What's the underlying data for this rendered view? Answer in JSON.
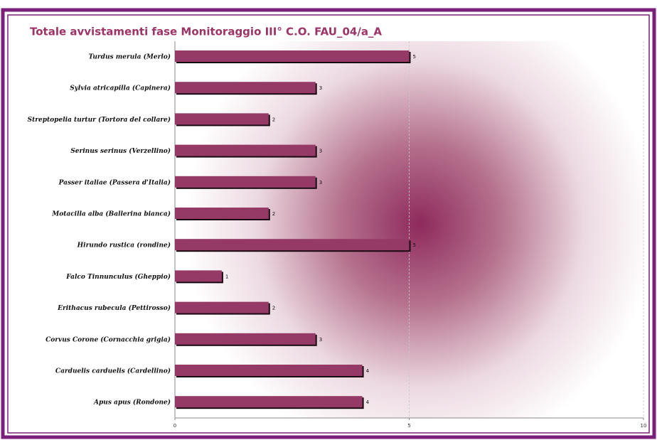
{
  "chart_data": {
    "type": "bar",
    "orientation": "horizontal",
    "title": "Totale avvistamenti fase Monitoraggio III° C.O. FAU_04/a_A",
    "categories": [
      "Turdus merula (Merlo)",
      "Sylvia  atricapilla (Capinera)",
      "Streptopelia turtur (Tortora del collare)",
      "Serinus serinus (Verzellino)",
      "Passer italiae (Passera d'Italia)",
      "Motacilla alba (Ballerina bianca)",
      "Hirundo rustica (rondine)",
      "Falco Tinnunculus (Gheppio)",
      "Erithacus rubecula (Pettirosso)",
      "Corvus Corone (Cornacchia grigia)",
      "Carduelis carduelis (Cardellino)",
      "Apus apus (Rondone)"
    ],
    "values": [
      5,
      3,
      2,
      3,
      3,
      2,
      5,
      1,
      2,
      3,
      4,
      4
    ],
    "color": "#953a66",
    "xlim": [
      0,
      10
    ],
    "xticks": [
      0,
      5,
      10
    ],
    "grid": true
  }
}
